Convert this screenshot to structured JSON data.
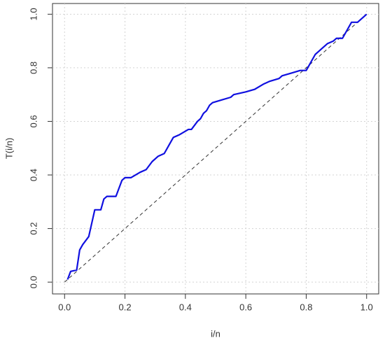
{
  "chart_data": {
    "type": "line",
    "x_label": "i/n",
    "y_label": "T(i/n)",
    "series": [
      {
        "color": "#1010e0",
        "width": 2.2,
        "dash": false,
        "x": [
          0.01,
          0.02,
          0.04,
          0.05,
          0.06,
          0.08,
          0.09,
          0.1,
          0.12,
          0.13,
          0.14,
          0.17,
          0.19,
          0.2,
          0.22,
          0.25,
          0.27,
          0.29,
          0.31,
          0.33,
          0.35,
          0.36,
          0.38,
          0.41,
          0.42,
          0.44,
          0.45,
          0.46,
          0.47,
          0.48,
          0.49,
          0.52,
          0.55,
          0.56,
          0.6,
          0.63,
          0.66,
          0.68,
          0.71,
          0.72,
          0.75,
          0.78,
          0.8,
          0.81,
          0.82,
          0.83,
          0.84,
          0.85,
          0.87,
          0.89,
          0.9,
          0.92,
          0.93,
          0.95,
          0.97,
          0.99,
          1.0
        ],
        "values": [
          0.01,
          0.04,
          0.045,
          0.12,
          0.14,
          0.17,
          0.22,
          0.27,
          0.27,
          0.31,
          0.32,
          0.32,
          0.38,
          0.39,
          0.39,
          0.41,
          0.42,
          0.45,
          0.47,
          0.48,
          0.52,
          0.54,
          0.55,
          0.57,
          0.57,
          0.6,
          0.61,
          0.63,
          0.64,
          0.66,
          0.67,
          0.68,
          0.69,
          0.7,
          0.71,
          0.72,
          0.74,
          0.75,
          0.76,
          0.77,
          0.78,
          0.79,
          0.79,
          0.81,
          0.83,
          0.85,
          0.86,
          0.87,
          0.89,
          0.9,
          0.91,
          0.91,
          0.93,
          0.97,
          0.97,
          0.99,
          1.0
        ]
      },
      {
        "color": "#333333",
        "width": 1,
        "dash": true,
        "x": [
          0,
          1
        ],
        "values": [
          0,
          1
        ]
      }
    ],
    "xlim": [
      -0.04,
      1.04
    ],
    "ylim": [
      -0.044,
      1.04
    ],
    "xticks": [
      {
        "value": 0,
        "label": "0.0"
      },
      0.2,
      0.4,
      0.6,
      0.8,
      {
        "value": 1,
        "label": "1.0"
      }
    ],
    "yticks": [
      {
        "value": 0,
        "label": "0.0"
      },
      0.2,
      0.4,
      0.6,
      0.8,
      {
        "value": 1,
        "label": "1.0"
      }
    ],
    "grid": true
  }
}
